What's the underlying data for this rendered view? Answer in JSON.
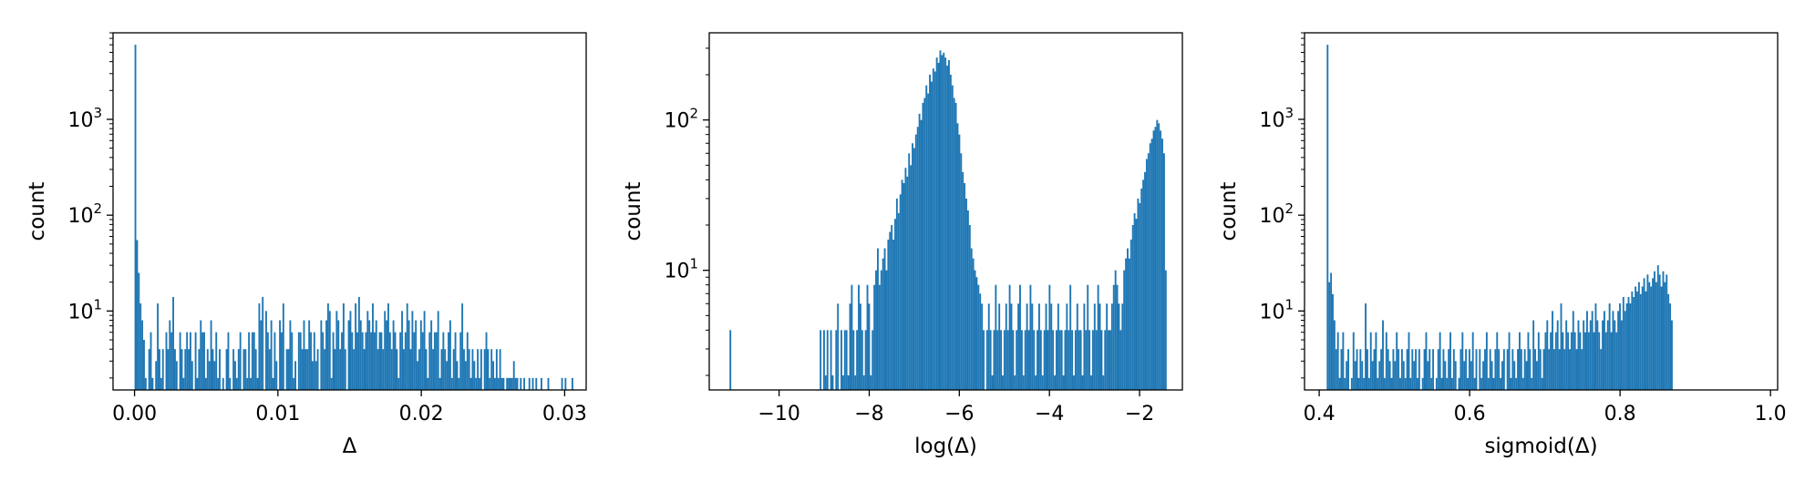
{
  "chart_data": [
    {
      "type": "bar",
      "xlabel": "Δ",
      "ylabel": "count",
      "yscale": "log",
      "xlim": [
        -0.0015,
        0.0315
      ],
      "ylim": [
        1.5,
        8000
      ],
      "xticks": [
        0,
        0.01,
        0.02,
        0.03
      ],
      "xtick_labels": [
        "0.00",
        "0.01",
        "0.02",
        "0.03"
      ],
      "ytick_labels": [
        {
          "value": 10,
          "base": "10",
          "exp": "1"
        },
        {
          "value": 100,
          "base": "10",
          "exp": "2"
        },
        {
          "value": 1000,
          "base": "10",
          "exp": "3"
        }
      ],
      "grid": false,
      "bar_color": "#1f77b4",
      "bins": {
        "start": 0.0,
        "width": 0.00012
      },
      "counts": [
        6000,
        55,
        25,
        12,
        8,
        5,
        2,
        0,
        4,
        6,
        2,
        0,
        3,
        12,
        4,
        2,
        4,
        0,
        6,
        4,
        8,
        6,
        14,
        4,
        3,
        0,
        6,
        4,
        2,
        4,
        6,
        4,
        6,
        3,
        0,
        6,
        2,
        4,
        8,
        6,
        6,
        2,
        4,
        3,
        8,
        4,
        3,
        6,
        2,
        4,
        0,
        2,
        0,
        4,
        6,
        2,
        0,
        4,
        3,
        2,
        4,
        6,
        0,
        4,
        4,
        2,
        6,
        2,
        6,
        6,
        4,
        2,
        12,
        8,
        14,
        0,
        10,
        6,
        4,
        8,
        2,
        6,
        3,
        0,
        8,
        6,
        12,
        0,
        4,
        4,
        8,
        6,
        2,
        3,
        0,
        6,
        6,
        4,
        8,
        4,
        4,
        8,
        6,
        3,
        6,
        3,
        4,
        0,
        8,
        6,
        4,
        8,
        12,
        10,
        2,
        6,
        4,
        10,
        8,
        4,
        6,
        12,
        4,
        0,
        8,
        10,
        6,
        4,
        12,
        6,
        14,
        8,
        6,
        4,
        6,
        10,
        8,
        6,
        12,
        6,
        8,
        4,
        6,
        6,
        4,
        10,
        8,
        12,
        6,
        4,
        8,
        6,
        4,
        2,
        6,
        10,
        4,
        6,
        12,
        8,
        4,
        10,
        6,
        8,
        3,
        4,
        8,
        6,
        10,
        4,
        2,
        6,
        8,
        4,
        6,
        6,
        10,
        2,
        4,
        6,
        4,
        3,
        6,
        8,
        2,
        4,
        6,
        3,
        2,
        6,
        12,
        4,
        3,
        6,
        4,
        2,
        4,
        3,
        2,
        4,
        2,
        4,
        0,
        4,
        6,
        4,
        2,
        4,
        3,
        2,
        4,
        2,
        4,
        2,
        2,
        0,
        2,
        2,
        2,
        2,
        3,
        2,
        2,
        0,
        2,
        0,
        2,
        0,
        0,
        2,
        0,
        2,
        0,
        2,
        0,
        0,
        2,
        0,
        0,
        0,
        2,
        0,
        0,
        0,
        0,
        0,
        0,
        0,
        2,
        0,
        2,
        0,
        0,
        0,
        2
      ]
    },
    {
      "type": "bar",
      "xlabel": "log(Δ)",
      "ylabel": "count",
      "yscale": "log",
      "xlim": [
        -11.55,
        -1.05
      ],
      "ylim": [
        1.6,
        380
      ],
      "xticks": [
        -10,
        -8,
        -6,
        -4,
        -2
      ],
      "xtick_labels": [
        "−10",
        "−8",
        "−6",
        "−4",
        "−2"
      ],
      "ytick_labels": [
        {
          "value": 10,
          "base": "10",
          "exp": "1"
        },
        {
          "value": 100,
          "base": "10",
          "exp": "2"
        }
      ],
      "grid": false,
      "bar_color": "#1f77b4",
      "bins": {
        "start": -11.1,
        "width": 0.0385
      },
      "counts": [
        4,
        0,
        0,
        0,
        0,
        0,
        0,
        0,
        0,
        0,
        0,
        0,
        0,
        0,
        0,
        0,
        0,
        0,
        0,
        0,
        0,
        0,
        0,
        0,
        0,
        0,
        0,
        0,
        0,
        0,
        0,
        0,
        0,
        0,
        0,
        0,
        0,
        0,
        0,
        0,
        0,
        0,
        0,
        0,
        0,
        0,
        0,
        0,
        0,
        0,
        0,
        0,
        4,
        0,
        4,
        2,
        4,
        0,
        4,
        2,
        0,
        4,
        6,
        0,
        4,
        2,
        4,
        4,
        2,
        6,
        8,
        4,
        2,
        4,
        8,
        6,
        4,
        2,
        4,
        8,
        6,
        2,
        4,
        8,
        10,
        14,
        8,
        10,
        12,
        14,
        10,
        16,
        18,
        20,
        16,
        22,
        30,
        24,
        32,
        40,
        38,
        48,
        42,
        60,
        50,
        70,
        65,
        80,
        90,
        110,
        100,
        130,
        140,
        170,
        150,
        200,
        180,
        220,
        210,
        260,
        240,
        290,
        270,
        280,
        260,
        230,
        250,
        200,
        170,
        140,
        130,
        95,
        80,
        60,
        45,
        38,
        30,
        25,
        20,
        14,
        12,
        10,
        9,
        8,
        7,
        6,
        4,
        0,
        4,
        6,
        4,
        2,
        4,
        8,
        4,
        6,
        4,
        2,
        4,
        6,
        4,
        8,
        6,
        4,
        2,
        4,
        6,
        8,
        4,
        2,
        4,
        6,
        4,
        8,
        6,
        4,
        2,
        4,
        6,
        4,
        2,
        4,
        6,
        4,
        8,
        6,
        4,
        2,
        4,
        6,
        4,
        4,
        2,
        4,
        6,
        4,
        8,
        4,
        2,
        4,
        6,
        4,
        4,
        2,
        6,
        4,
        8,
        4,
        2,
        4,
        6,
        4,
        8,
        6,
        4,
        2,
        4,
        6,
        4,
        4,
        6,
        8,
        10,
        8,
        6,
        4,
        6,
        10,
        12,
        14,
        12,
        16,
        20,
        24,
        22,
        30,
        28,
        35,
        40,
        45,
        55,
        60,
        70,
        75,
        85,
        90,
        100,
        95,
        85,
        75,
        60,
        10
      ]
    },
    {
      "type": "bar",
      "xlabel": "sigmoid(Δ)",
      "ylabel": "count",
      "yscale": "log",
      "xlim": [
        0.3805,
        1.0095
      ],
      "ylim": [
        1.5,
        8000
      ],
      "xticks": [
        0.4,
        0.6,
        0.8,
        1.0
      ],
      "xtick_labels": [
        "0.4",
        "0.6",
        "0.8",
        "1.0"
      ],
      "ytick_labels": [
        {
          "value": 10,
          "base": "10",
          "exp": "1"
        },
        {
          "value": 100,
          "base": "10",
          "exp": "2"
        },
        {
          "value": 1000,
          "base": "10",
          "exp": "3"
        }
      ],
      "grid": false,
      "bar_color": "#1f77b4",
      "bins": {
        "start": 0.41,
        "width": 0.0023
      },
      "counts": [
        6000,
        20,
        25,
        15,
        8,
        4,
        6,
        2,
        4,
        6,
        2,
        3,
        4,
        0,
        2,
        6,
        3,
        4,
        2,
        4,
        3,
        2,
        12,
        4,
        2,
        6,
        3,
        4,
        6,
        2,
        3,
        4,
        8,
        2,
        6,
        4,
        3,
        2,
        4,
        3,
        6,
        4,
        2,
        4,
        3,
        2,
        4,
        6,
        2,
        4,
        3,
        4,
        2,
        4,
        0,
        2,
        4,
        6,
        3,
        4,
        2,
        4,
        0,
        2,
        4,
        6,
        2,
        4,
        3,
        2,
        4,
        6,
        2,
        4,
        3,
        0,
        2,
        4,
        6,
        3,
        4,
        2,
        4,
        3,
        6,
        2,
        4,
        0,
        4,
        2,
        3,
        4,
        6,
        2,
        4,
        3,
        2,
        4,
        6,
        4,
        2,
        3,
        4,
        0,
        4,
        6,
        2,
        4,
        3,
        2,
        4,
        6,
        4,
        2,
        4,
        3,
        6,
        4,
        2,
        8,
        4,
        3,
        6,
        4,
        2,
        4,
        6,
        8,
        4,
        6,
        10,
        4,
        6,
        8,
        4,
        12,
        6,
        4,
        8,
        6,
        4,
        6,
        10,
        6,
        4,
        8,
        6,
        4,
        8,
        6,
        10,
        6,
        8,
        10,
        6,
        12,
        8,
        6,
        4,
        8,
        10,
        6,
        8,
        12,
        6,
        10,
        8,
        6,
        10,
        12,
        8,
        14,
        10,
        12,
        14,
        12,
        16,
        14,
        18,
        16,
        20,
        15,
        18,
        22,
        16,
        24,
        20,
        18,
        22,
        26,
        20,
        30,
        24,
        18,
        26,
        20,
        24,
        15,
        12,
        8
      ]
    }
  ]
}
